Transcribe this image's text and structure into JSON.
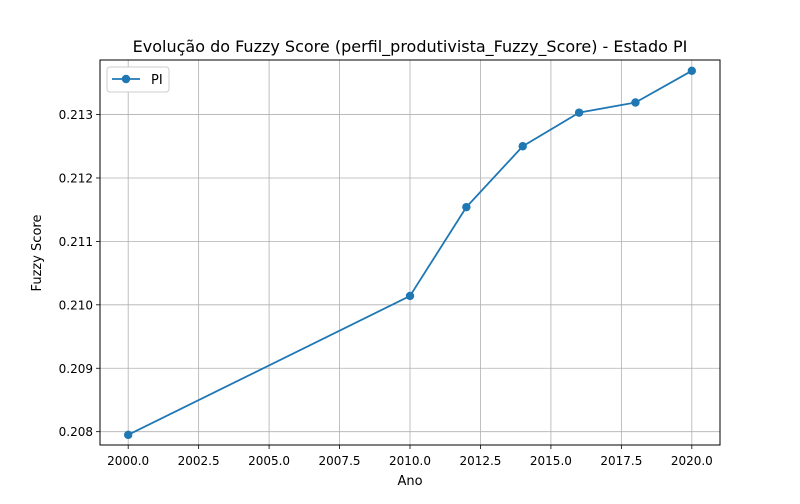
{
  "chart_data": {
    "type": "line",
    "title": "Evolução do Fuzzy Score (perfil_produtivista_Fuzzy_Score) - Estado PI",
    "xlabel": "Ano",
    "ylabel": "Fuzzy Score",
    "x_ticks": [
      2000.0,
      2002.5,
      2005.0,
      2007.5,
      2010.0,
      2012.5,
      2015.0,
      2017.5,
      2020.0
    ],
    "x_tick_labels": [
      "2000.0",
      "2002.5",
      "2005.0",
      "2007.5",
      "2010.0",
      "2012.5",
      "2015.0",
      "2017.5",
      "2020.0"
    ],
    "y_ticks": [
      0.208,
      0.209,
      0.21,
      0.211,
      0.212,
      0.213
    ],
    "y_tick_labels": [
      "0.208",
      "0.209",
      "0.210",
      "0.211",
      "0.212",
      "0.213"
    ],
    "xlim": [
      1999.0,
      2021.0
    ],
    "ylim": [
      0.20779,
      0.21386
    ],
    "grid": true,
    "legend_position": "top-left",
    "series": [
      {
        "name": "PI",
        "color": "#1f77b4",
        "marker": "circle",
        "x": [
          2000,
          2010,
          2012,
          2014,
          2016,
          2018,
          2020
        ],
        "y": [
          0.20795,
          0.21014,
          0.21154,
          0.2125,
          0.21303,
          0.21319,
          0.21369
        ]
      }
    ]
  }
}
